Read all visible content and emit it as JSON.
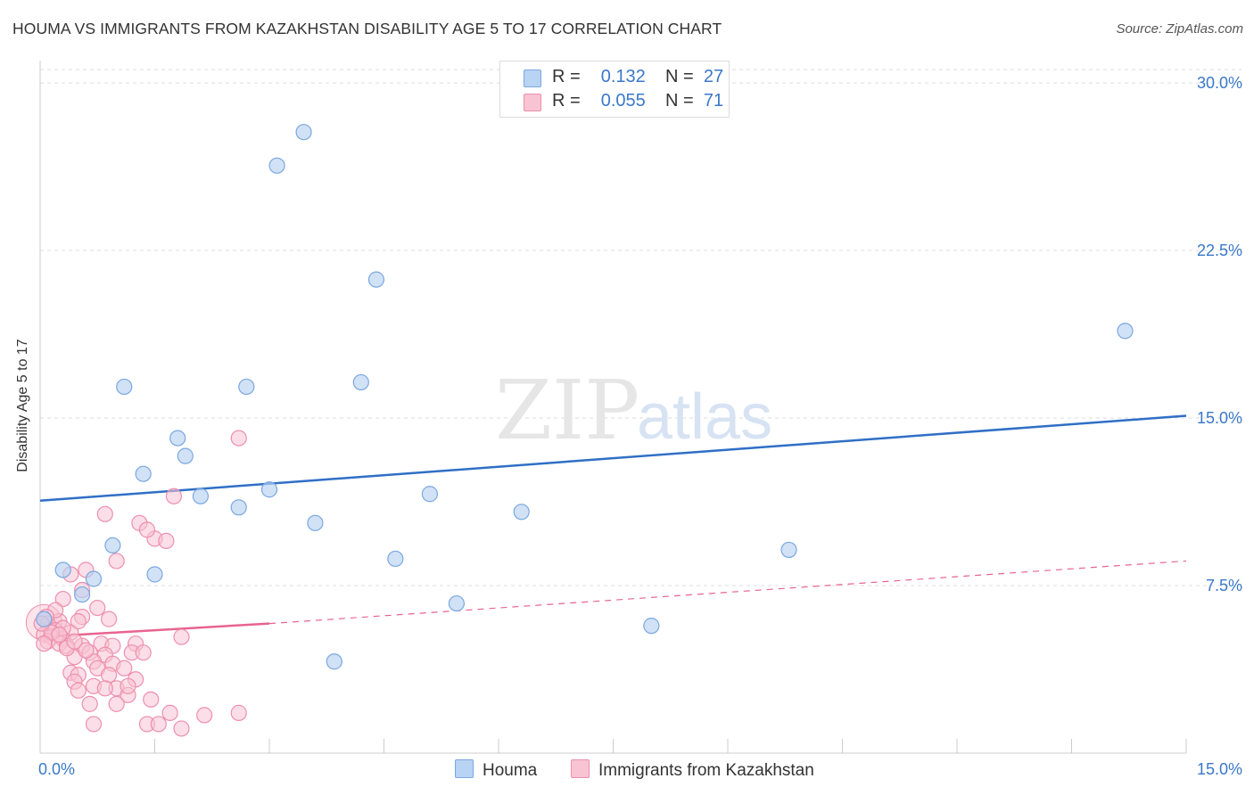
{
  "header": {
    "title": "HOUMA VS IMMIGRANTS FROM KAZAKHSTAN DISABILITY AGE 5 TO 17 CORRELATION CHART",
    "source": "Source: ZipAtlas.com"
  },
  "watermark": {
    "zip": "ZIP",
    "atlas": "atlas"
  },
  "legend": {
    "items": [
      {
        "r_label": "R =",
        "r_value": "0.132",
        "n_label": "N =",
        "n_value": "27"
      },
      {
        "r_label": "R =",
        "r_value": "0.055",
        "n_label": "N =",
        "n_value": "71"
      }
    ]
  },
  "bottom_legend": [
    "Houma",
    "Immigrants from Kazakhstan"
  ],
  "colors": {
    "houma_fill": "#b8d3f3",
    "houma_stroke": "#7aa7e0",
    "houma_line": "#2f6fc6",
    "kaz_fill": "#f8c3d3",
    "kaz_stroke": "#ee8fae",
    "kaz_line": "#e8648f",
    "tick_label": "#3a78c9",
    "grid": "#dddddd"
  },
  "chart_data": {
    "type": "scatter",
    "ylabel": "Disability Age 5 to 17",
    "xlim": [
      0,
      15
    ],
    "ylim": [
      0,
      31
    ],
    "x_tick_labels": [
      "0.0%",
      "15.0%"
    ],
    "y_ticks": [
      7.5,
      15.0,
      22.5,
      30.0
    ],
    "y_tick_labels": [
      "7.5%",
      "15.0%",
      "22.5%",
      "30.0%"
    ],
    "grid": true,
    "series": [
      {
        "name": "Houma",
        "points": [
          [
            3.45,
            27.8
          ],
          [
            3.1,
            26.3
          ],
          [
            4.4,
            21.2
          ],
          [
            14.2,
            18.9
          ],
          [
            1.1,
            16.4
          ],
          [
            2.7,
            16.4
          ],
          [
            4.2,
            16.6
          ],
          [
            1.8,
            14.1
          ],
          [
            1.9,
            13.3
          ],
          [
            1.35,
            12.5
          ],
          [
            2.1,
            11.5
          ],
          [
            3.0,
            11.8
          ],
          [
            5.1,
            11.6
          ],
          [
            2.6,
            11.0
          ],
          [
            6.3,
            10.8
          ],
          [
            3.6,
            10.3
          ],
          [
            0.95,
            9.3
          ],
          [
            9.8,
            9.1
          ],
          [
            4.65,
            8.7
          ],
          [
            0.3,
            8.2
          ],
          [
            1.5,
            8.0
          ],
          [
            0.7,
            7.8
          ],
          [
            0.55,
            7.1
          ],
          [
            5.45,
            6.7
          ],
          [
            8.0,
            5.7
          ],
          [
            3.85,
            4.1
          ],
          [
            0.05,
            6.0
          ]
        ],
        "trend": {
          "x0": 0.0,
          "y0": 11.3,
          "x1": 15.0,
          "y1": 15.1
        }
      },
      {
        "name": "Immigrants from Kazakhstan",
        "points": [
          [
            2.6,
            14.1
          ],
          [
            1.75,
            11.5
          ],
          [
            0.85,
            10.7
          ],
          [
            1.3,
            10.3
          ],
          [
            1.5,
            9.6
          ],
          [
            1.65,
            9.5
          ],
          [
            1.4,
            10.0
          ],
          [
            1.0,
            8.6
          ],
          [
            0.6,
            8.2
          ],
          [
            0.4,
            8.0
          ],
          [
            0.55,
            7.3
          ],
          [
            0.3,
            6.9
          ],
          [
            0.75,
            6.5
          ],
          [
            0.55,
            6.1
          ],
          [
            0.25,
            5.9
          ],
          [
            0.1,
            5.8
          ],
          [
            0.2,
            5.5
          ],
          [
            0.4,
            5.4
          ],
          [
            0.05,
            5.3
          ],
          [
            0.15,
            5.2
          ],
          [
            0.3,
            5.1
          ],
          [
            0.1,
            5.0
          ],
          [
            0.25,
            4.9
          ],
          [
            0.35,
            4.8
          ],
          [
            0.55,
            4.8
          ],
          [
            0.8,
            4.9
          ],
          [
            0.95,
            4.8
          ],
          [
            1.25,
            4.9
          ],
          [
            1.85,
            5.2
          ],
          [
            0.65,
            4.5
          ],
          [
            0.85,
            4.4
          ],
          [
            1.2,
            4.5
          ],
          [
            1.35,
            4.5
          ],
          [
            0.45,
            4.3
          ],
          [
            0.7,
            4.1
          ],
          [
            0.95,
            4.0
          ],
          [
            0.75,
            3.8
          ],
          [
            1.1,
            3.8
          ],
          [
            0.4,
            3.6
          ],
          [
            0.5,
            3.5
          ],
          [
            0.9,
            3.5
          ],
          [
            1.25,
            3.3
          ],
          [
            0.45,
            3.2
          ],
          [
            0.7,
            3.0
          ],
          [
            1.0,
            2.9
          ],
          [
            0.5,
            2.8
          ],
          [
            1.15,
            2.6
          ],
          [
            1.45,
            2.4
          ],
          [
            0.65,
            2.2
          ],
          [
            1.0,
            2.2
          ],
          [
            1.7,
            1.8
          ],
          [
            2.15,
            1.7
          ],
          [
            2.6,
            1.8
          ],
          [
            1.4,
            1.3
          ],
          [
            1.85,
            1.1
          ],
          [
            0.7,
            1.3
          ],
          [
            0.85,
            2.9
          ],
          [
            1.15,
            3.0
          ],
          [
            0.3,
            5.6
          ],
          [
            0.2,
            6.4
          ],
          [
            0.6,
            4.6
          ],
          [
            0.35,
            4.7
          ],
          [
            0.15,
            5.4
          ],
          [
            0.08,
            6.1
          ],
          [
            0.45,
            5.0
          ],
          [
            0.25,
            5.3
          ],
          [
            0.5,
            5.9
          ],
          [
            0.9,
            6.0
          ],
          [
            0.05,
            4.9
          ],
          [
            1.55,
            1.3
          ],
          [
            0.02,
            5.8
          ]
        ],
        "trend_solid": {
          "x0": 0.0,
          "y0": 5.2,
          "x1": 3.0,
          "y1": 5.8
        },
        "trend_dashed": {
          "x0": 3.0,
          "y0": 5.8,
          "x1": 15.0,
          "y1": 8.6
        }
      }
    ]
  }
}
